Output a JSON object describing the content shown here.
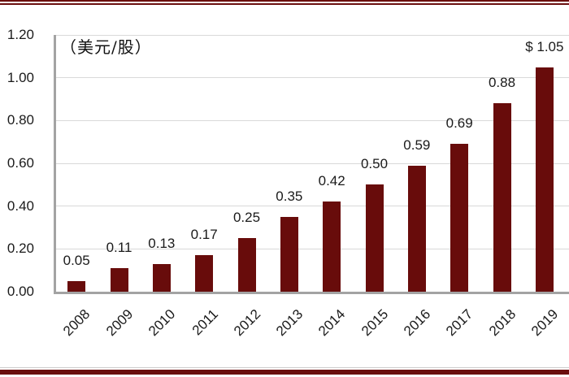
{
  "colors": {
    "bar": "#680C0B",
    "rule": "#6B0F0E",
    "gridline": "#D9D9D9",
    "axis": "#A3A3A3",
    "text": "#1A1A1A"
  },
  "chart_data": {
    "type": "bar",
    "title": "",
    "unit_label": "（美元/股）",
    "xlabel": "",
    "ylabel": "",
    "categories": [
      "2008",
      "2009",
      "2010",
      "2011",
      "2012",
      "2013",
      "2014",
      "2015",
      "2016",
      "2017",
      "2018",
      "2019"
    ],
    "values": [
      0.05,
      0.11,
      0.13,
      0.17,
      0.25,
      0.35,
      0.42,
      0.5,
      0.59,
      0.69,
      0.88,
      1.05
    ],
    "value_labels": [
      "0.05",
      "0.11",
      "0.13",
      "0.17",
      "0.25",
      "0.35",
      "0.42",
      "0.50",
      "0.59",
      "0.69",
      "0.88",
      "$ 1.05"
    ],
    "ylim": [
      0,
      1.2
    ],
    "ytick_step": 0.2,
    "ytick_labels": [
      "0.00",
      "0.20",
      "0.40",
      "0.60",
      "0.80",
      "1.00",
      "1.20"
    ],
    "grid": "horizontal",
    "legend": "none",
    "x_label_rotation_deg": 45
  }
}
